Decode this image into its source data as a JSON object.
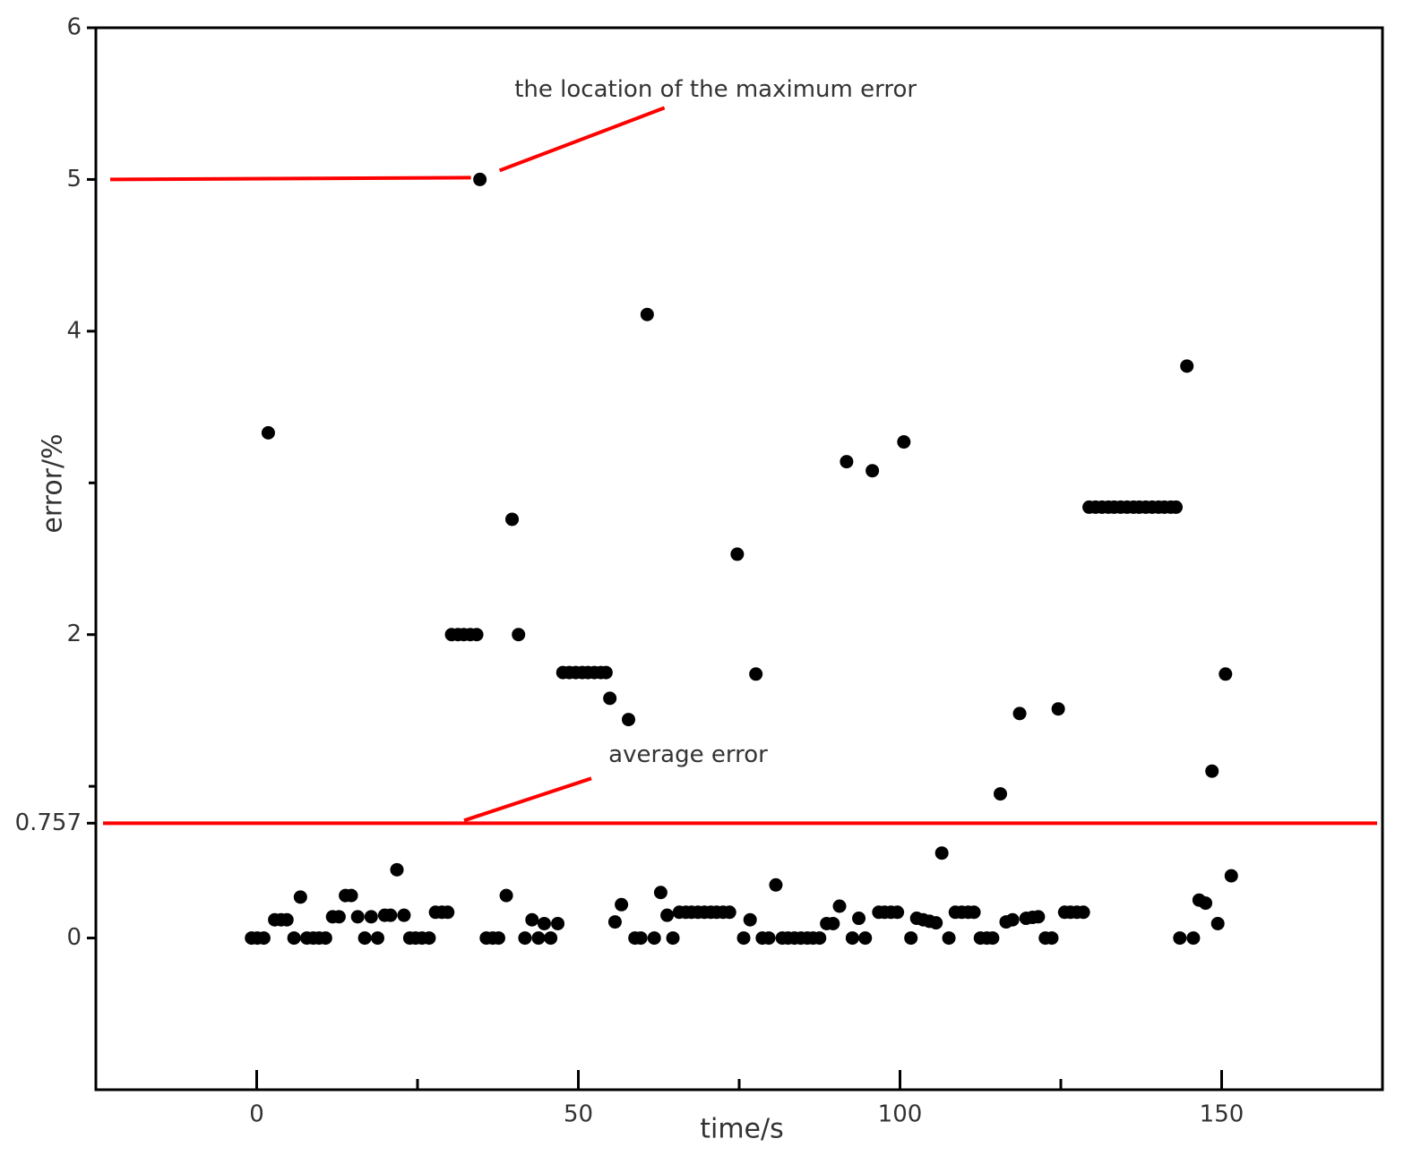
{
  "chart_data": {
    "type": "scatter",
    "x_label": "time/s",
    "y_label": "error/%",
    "color": "#000000",
    "xlim": [
      -25,
      175
    ],
    "ylim": [
      -1,
      6
    ],
    "xticks": [
      0,
      50,
      100,
      150
    ],
    "xminorticks": [
      25,
      75,
      125
    ],
    "yticks": [
      0,
      0.757,
      2,
      4,
      5,
      6
    ],
    "yminorticks": [
      1,
      3
    ],
    "annotations": [
      {
        "text": "the location of the maximum error",
        "color": "#ff0000"
      },
      {
        "text": "average error",
        "value": 0.757,
        "color": "#ff0000"
      }
    ],
    "x": [
      -0.8,
      0.1,
      1.1,
      1.8,
      2.8,
      3.8,
      4.7,
      5.8,
      6.8,
      7.8,
      8.8,
      9.7,
      10.7,
      11.8,
      12.8,
      13.8,
      14.7,
      15.7,
      16.8,
      17.8,
      18.8,
      19.9,
      20.8,
      21.8,
      22.9,
      23.8,
      24.7,
      25.7,
      26.8,
      27.8,
      28.8,
      29.7,
      30.3,
      31.3,
      32.2,
      33.2,
      34.2,
      34.7,
      35.7,
      36.7,
      37.6,
      38.8,
      39.7,
      40.7,
      41.7,
      42.8,
      43.8,
      44.7,
      45.7,
      46.8,
      47.6,
      48.6,
      49.6,
      50.6,
      51.5,
      52.5,
      53.5,
      54.3,
      54.9,
      55.7,
      56.7,
      57.8,
      58.8,
      59.7,
      60.7,
      61.8,
      62.8,
      63.8,
      64.7,
      65.7,
      66.7,
      67.6,
      68.6,
      69.6,
      70.6,
      71.5,
      72.5,
      73.5,
      74.7,
      75.7,
      76.7,
      77.6,
      78.6,
      79.6,
      80.7,
      81.7,
      82.6,
      83.6,
      84.6,
      85.6,
      86.5,
      87.5,
      88.6,
      89.6,
      90.6,
      91.7,
      92.6,
      93.6,
      94.6,
      95.7,
      96.7,
      97.6,
      98.6,
      99.6,
      100.6,
      101.7,
      102.6,
      103.6,
      104.6,
      105.6,
      106.5,
      107.6,
      108.6,
      109.6,
      110.6,
      111.5,
      112.5,
      113.5,
      114.4,
      115.6,
      116.5,
      117.5,
      118.6,
      119.6,
      120.6,
      121.5,
      122.6,
      123.6,
      124.6,
      125.6,
      126.5,
      127.5,
      128.5,
      129.4,
      130.4,
      131.4,
      132.4,
      133.3,
      134.3,
      135.3,
      136.3,
      137.2,
      138.2,
      139.2,
      140.2,
      141.1,
      142.1,
      142.9,
      143.5,
      144.6,
      145.6,
      146.5,
      147.5,
      148.5,
      149.4,
      150.6,
      151.5
    ],
    "values": [
      0,
      0,
      0,
      3.33,
      0.12,
      0.12,
      0.12,
      0,
      0.27,
      0,
      0,
      0,
      0,
      0.14,
      0.14,
      0.28,
      0.28,
      0.14,
      0,
      0.14,
      0,
      0.15,
      0.15,
      0.45,
      0.15,
      0,
      0,
      0,
      0,
      0.17,
      0.17,
      0.17,
      2,
      2,
      2,
      2,
      2,
      5,
      0,
      0,
      0,
      0.28,
      2.76,
      2,
      0,
      0.12,
      0,
      0.095,
      0,
      0.095,
      1.75,
      1.75,
      1.75,
      1.75,
      1.75,
      1.75,
      1.75,
      1.75,
      1.58,
      0.106,
      0.22,
      1.44,
      0,
      0,
      4.11,
      0,
      0.3,
      0.15,
      0,
      0.17,
      0.17,
      0.17,
      0.17,
      0.17,
      0.17,
      0.17,
      0.17,
      0.17,
      2.53,
      0,
      0.12,
      1.74,
      0,
      0,
      0.35,
      0,
      0,
      0,
      0,
      0,
      0,
      0,
      0.095,
      0.095,
      0.21,
      3.14,
      0,
      0.13,
      0,
      3.08,
      0.17,
      0.17,
      0.17,
      0.17,
      3.27,
      0,
      0.13,
      0.12,
      0.11,
      0.1,
      0.56,
      0,
      0.17,
      0.17,
      0.17,
      0.17,
      0,
      0,
      0,
      0.95,
      0.106,
      0.12,
      1.48,
      0.13,
      0.136,
      0.14,
      0,
      0,
      1.51,
      0.17,
      0.17,
      0.17,
      0.17,
      2.84,
      2.84,
      2.84,
      2.84,
      2.84,
      2.84,
      2.84,
      2.84,
      2.84,
      2.84,
      2.84,
      2.84,
      2.84,
      2.84,
      2.84,
      0,
      3.77,
      0,
      0.25,
      0.23,
      1.1,
      0.095,
      1.74,
      0.41
    ]
  }
}
